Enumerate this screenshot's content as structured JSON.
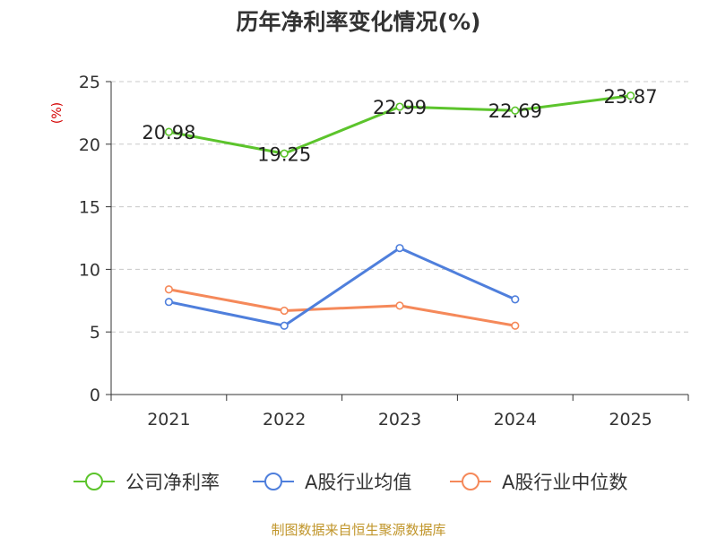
{
  "chart_data": {
    "type": "line",
    "title": "历年净利率变化情况(%)",
    "ylabel": "(%)",
    "xlabel": "",
    "categories": [
      "2021",
      "2022",
      "2023",
      "2024",
      "2025"
    ],
    "ylim": [
      0,
      25
    ],
    "yticks": [
      0,
      5,
      10,
      15,
      20,
      25
    ],
    "grid": true,
    "legend_position": "bottom",
    "series": [
      {
        "name": "公司净利率",
        "color": "#5cc42c",
        "values": [
          20.98,
          19.25,
          22.99,
          22.69,
          23.87
        ],
        "labels": [
          "20.98",
          "19.25",
          "22.99",
          "22.69",
          "23.87"
        ]
      },
      {
        "name": "A股行业均值",
        "color": "#4f7fdc",
        "values": [
          7.4,
          5.5,
          11.7,
          7.6,
          null
        ]
      },
      {
        "name": "A股行业中位数",
        "color": "#f5895a",
        "values": [
          8.4,
          6.7,
          7.1,
          5.5,
          null
        ]
      }
    ]
  },
  "source": "制图数据来自恒生聚源数据库",
  "colors": {
    "source_text": "#c0952a",
    "axis": "#333333",
    "grid": "#c8c8c8",
    "ylabel": "#d40000"
  }
}
